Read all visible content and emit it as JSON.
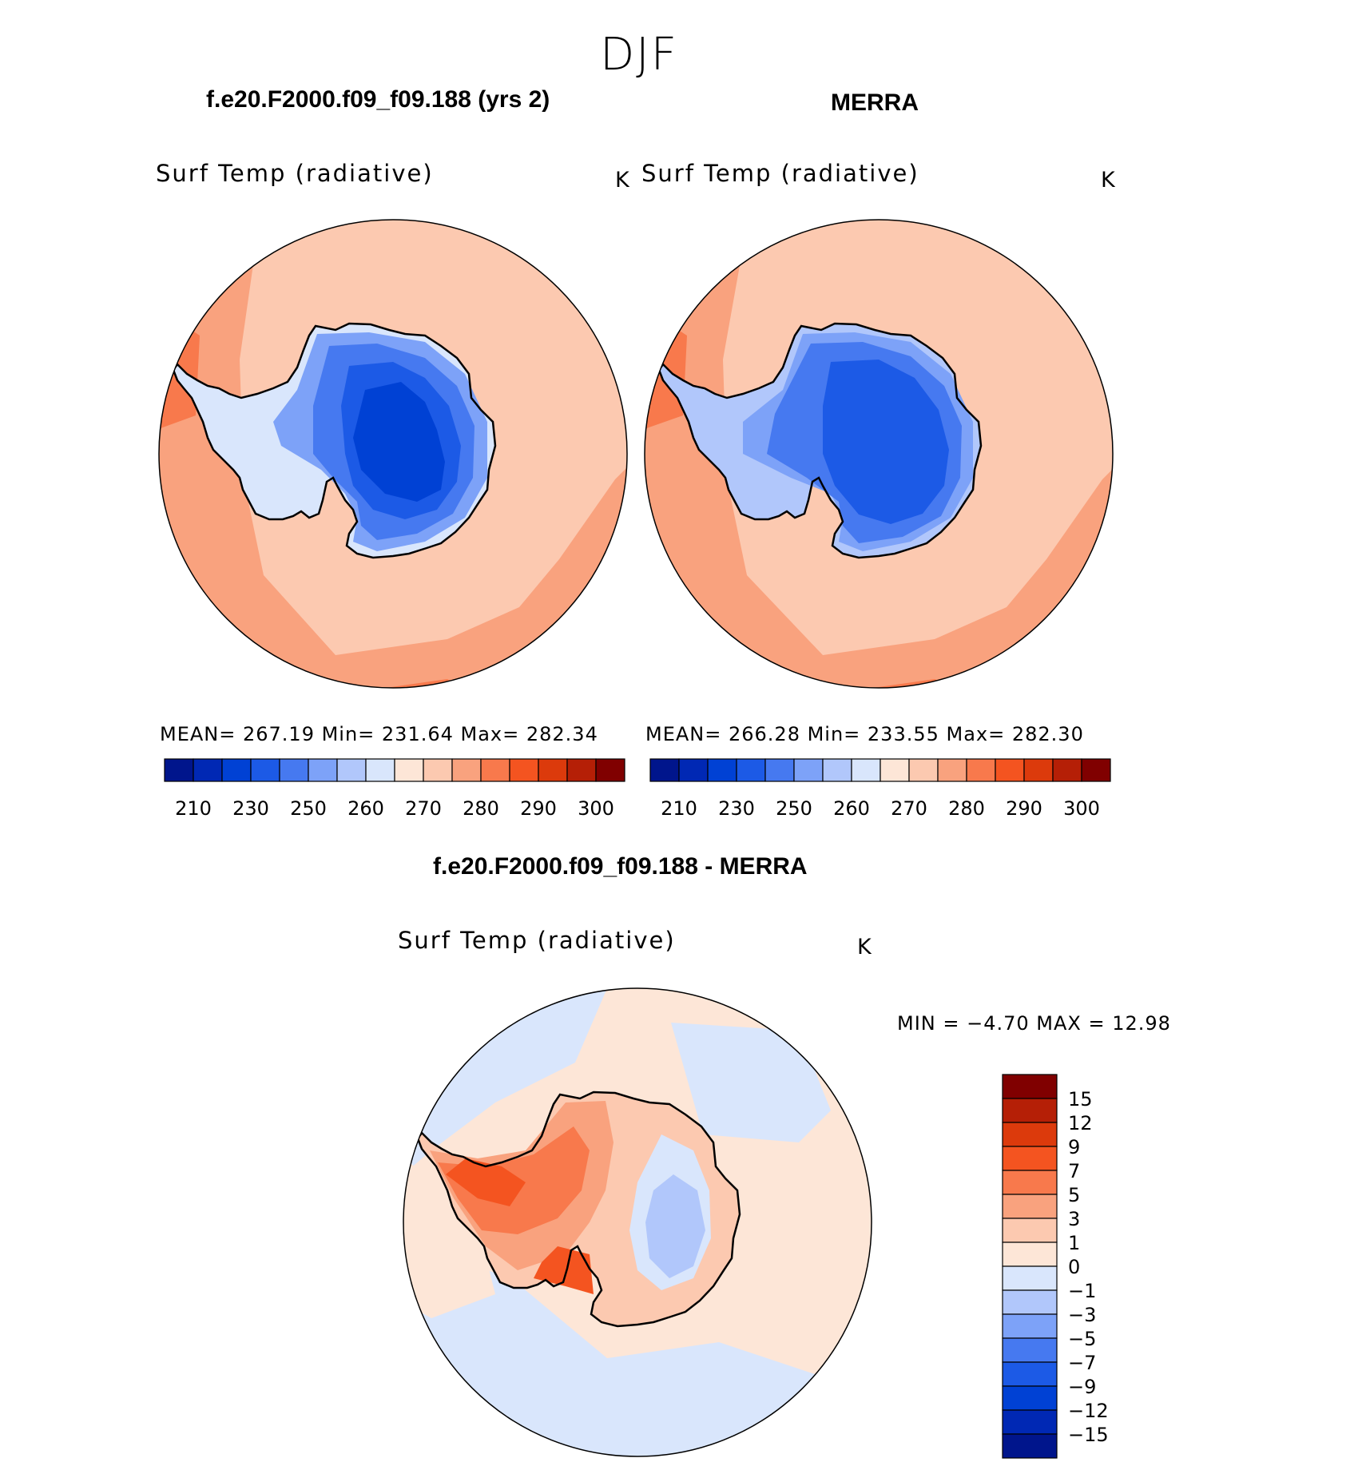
{
  "figure": {
    "title": "DJF"
  },
  "panels": [
    {
      "id": "model",
      "case_title": "f.e20.F2000.f09_f09.188 (yrs 2)",
      "variable": "Surf Temp (radiative)",
      "units": "K",
      "stats": "MEAN=  267.19   Min=  231.64   Max=  282.34"
    },
    {
      "id": "obs",
      "case_title": "MERRA",
      "variable": "Surf Temp (radiative)",
      "units": "K",
      "stats": "MEAN=  266.28   Min=  233.55   Max=  282.30"
    },
    {
      "id": "diff",
      "case_title": "f.e20.F2000.f09_f09.188 - MERRA",
      "variable": "Surf Temp (radiative)",
      "units": "K",
      "stats": "MIN  =    −4.70  MAX  =    12.98"
    }
  ],
  "colorbar_abs": {
    "colors": [
      "#00158c",
      "#0028b4",
      "#0041d4",
      "#1c5ae6",
      "#4679f0",
      "#7da2f8",
      "#b1c7fb",
      "#d9e6fc",
      "#fde6d7",
      "#fcc9b0",
      "#f9a27e",
      "#f8794c",
      "#f45420",
      "#dc3a0c",
      "#b51f06",
      "#800000"
    ],
    "tick_labels": [
      "210",
      "230",
      "250",
      "260",
      "270",
      "280",
      "290",
      "300"
    ]
  },
  "colorbar_diff": {
    "colors": [
      "#800000",
      "#b51f06",
      "#dc3a0c",
      "#f45420",
      "#f8794c",
      "#f9a27e",
      "#fcc9b0",
      "#fde6d7",
      "#d9e6fc",
      "#b1c7fb",
      "#7da2f8",
      "#4679f0",
      "#1c5ae6",
      "#0041d4",
      "#0028b4",
      "#00158c"
    ],
    "tick_labels": [
      "15",
      "12",
      "9",
      "7",
      "5",
      "3",
      "1",
      "0",
      "−1",
      "−3",
      "−5",
      "−7",
      "−9",
      "−12",
      "−15"
    ]
  }
}
